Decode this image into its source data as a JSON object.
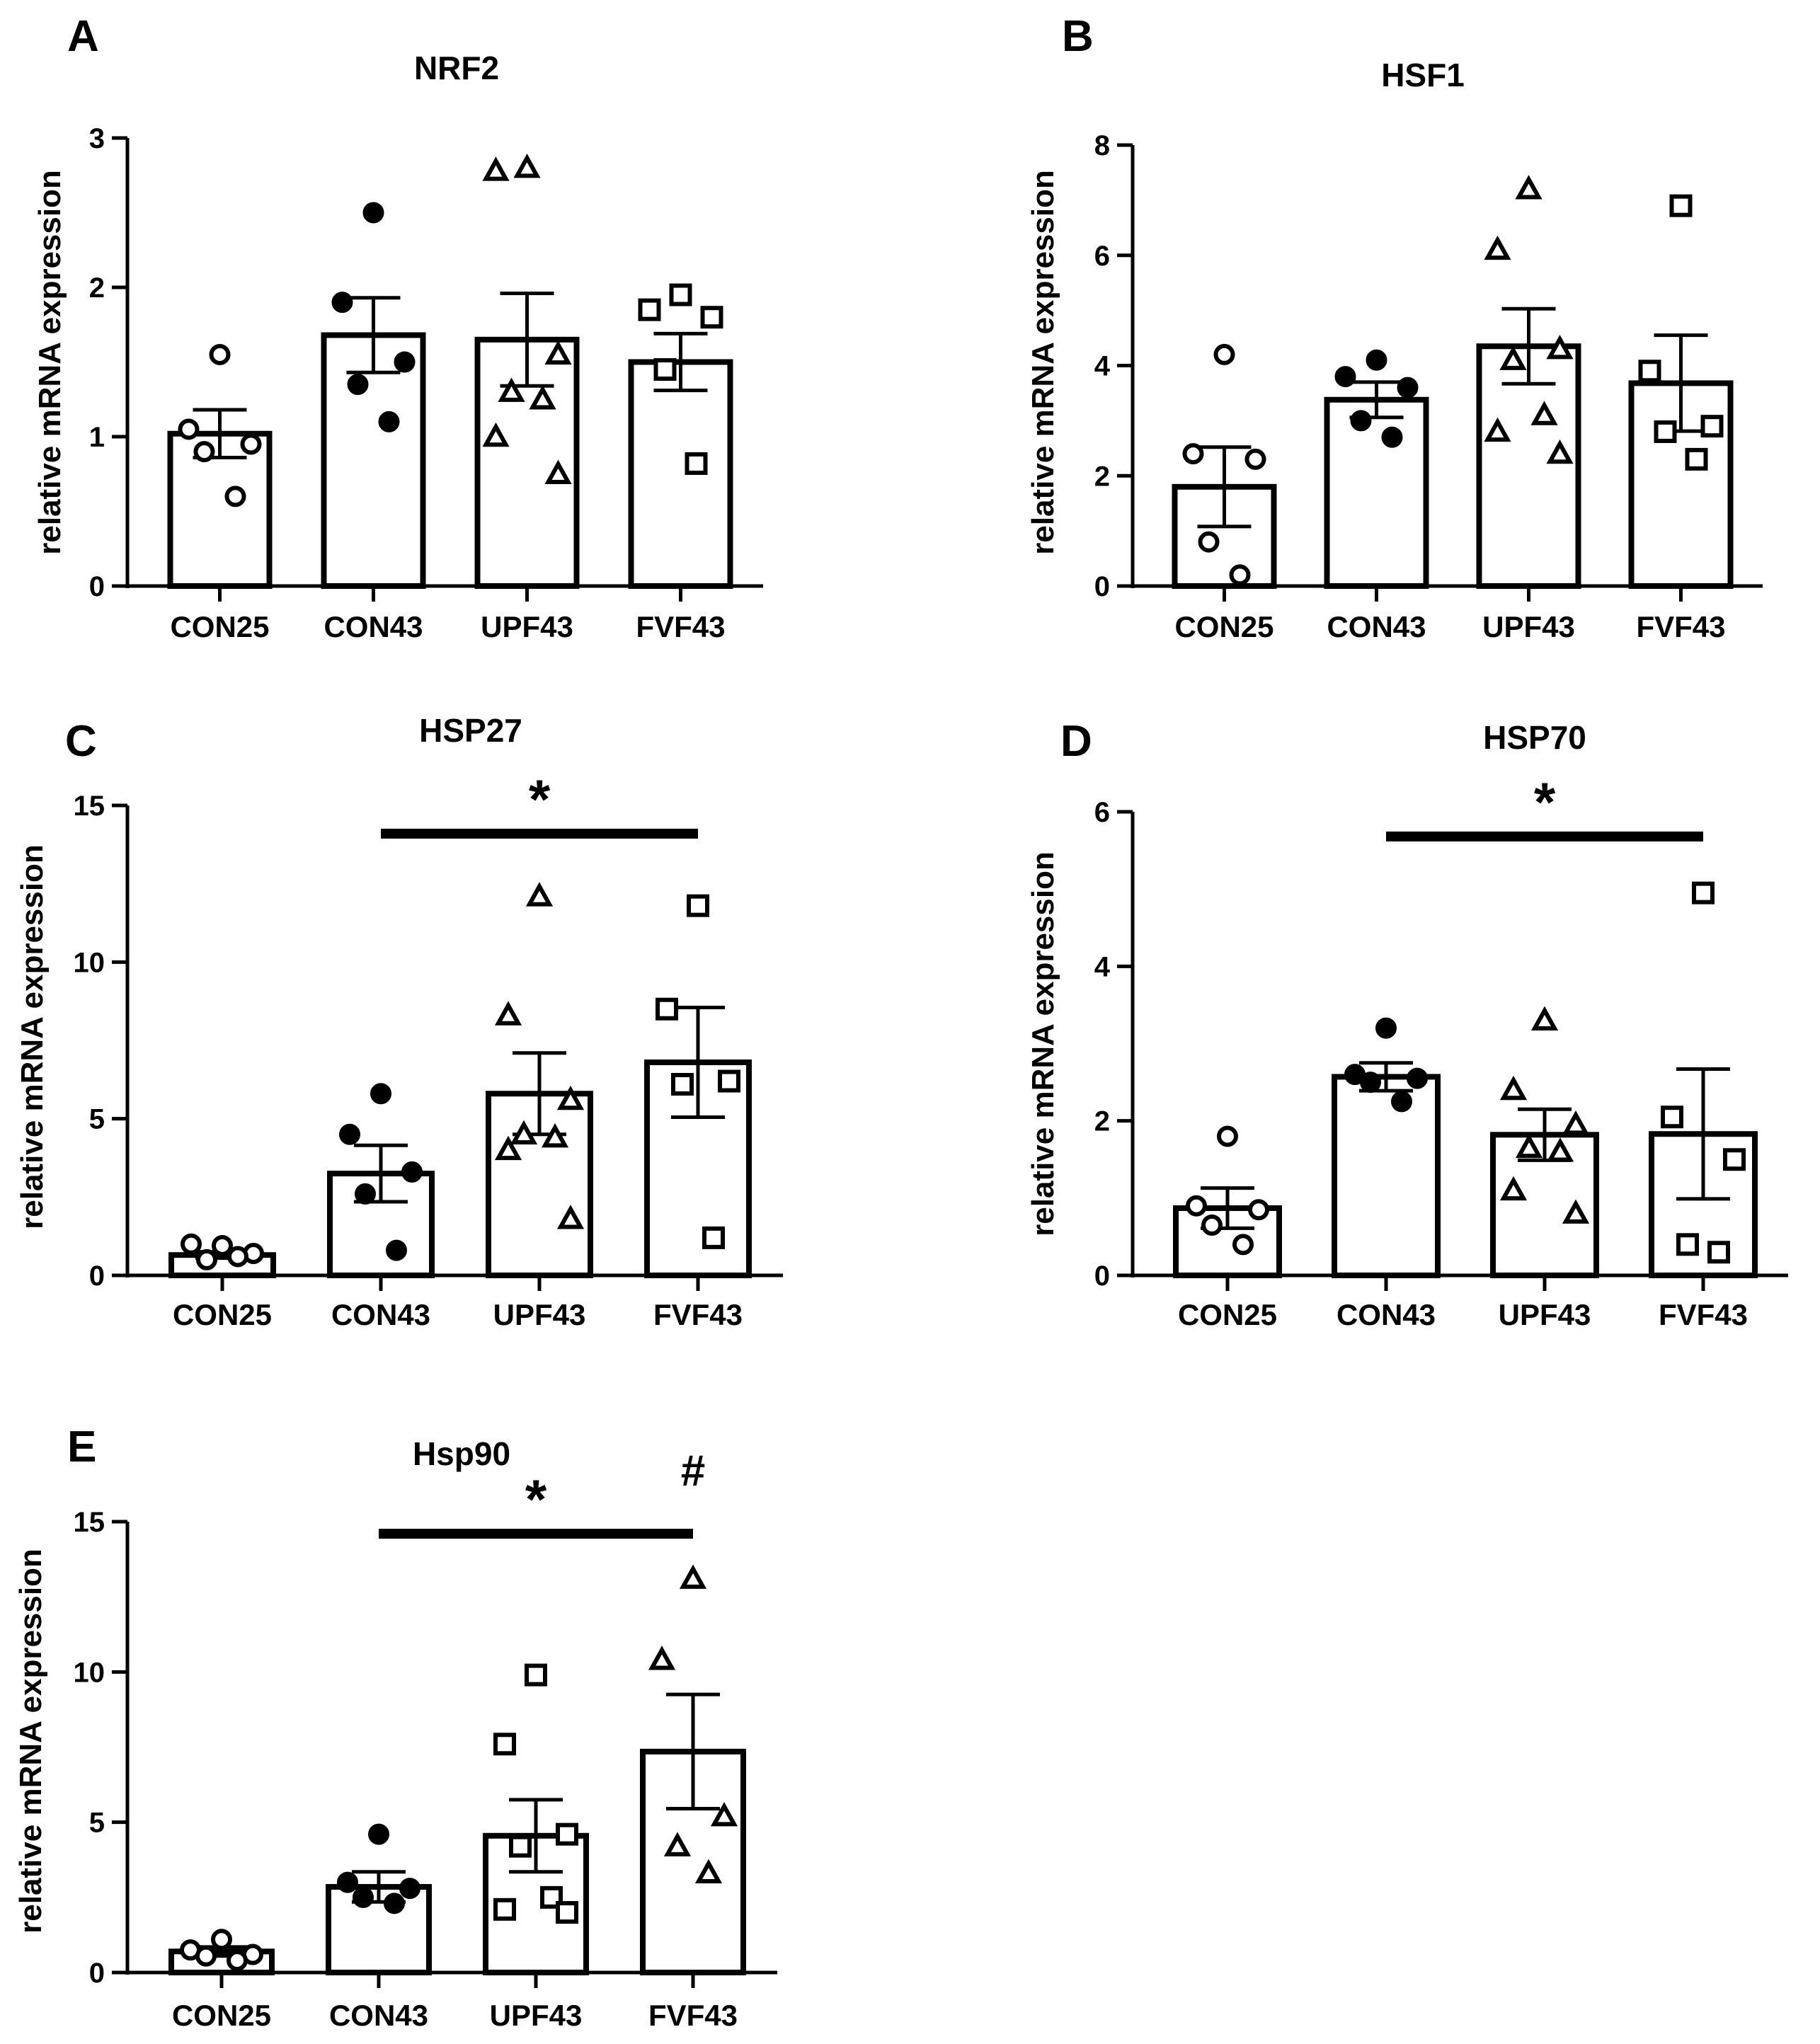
{
  "figure": {
    "colors": {
      "ink": "#000000",
      "bar_fill": "#ffffff"
    },
    "ylabel": "relative mRNA expression"
  },
  "chart_data": [
    {
      "panel": "A",
      "title": "NRF2",
      "type": "bar",
      "ylabel": "relative mRNA expression",
      "ylim": [
        0,
        3
      ],
      "yticks": [
        0,
        1,
        2,
        3
      ],
      "categories": [
        "CON25",
        "CON43",
        "UPF43",
        "FVF43"
      ],
      "markers": [
        "circle-open",
        "circle-filled",
        "triangle-open",
        "square-open"
      ],
      "means": [
        1.02,
        1.68,
        1.65,
        1.5
      ],
      "sem": [
        0.16,
        0.25,
        0.31,
        0.19
      ],
      "points": [
        [
          1.55,
          1.05,
          0.95,
          0.9,
          0.6
        ],
        [
          2.5,
          1.9,
          1.5,
          1.35,
          1.1
        ],
        [
          2.8,
          2.78,
          1.55,
          1.3,
          1.25,
          1.0,
          0.75
        ],
        [
          1.95,
          1.85,
          1.8,
          1.45,
          0.82
        ]
      ],
      "annotations": []
    },
    {
      "panel": "B",
      "title": "HSF1",
      "type": "bar",
      "ylabel": "relative mRNA expression",
      "ylim": [
        0,
        8
      ],
      "yticks": [
        0,
        2,
        4,
        6,
        8
      ],
      "categories": [
        "CON25",
        "CON43",
        "UPF43",
        "FVF43"
      ],
      "markers": [
        "circle-open",
        "circle-filled",
        "triangle-open",
        "square-open"
      ],
      "means": [
        1.8,
        3.38,
        4.35,
        3.68
      ],
      "sem": [
        0.72,
        0.32,
        0.68,
        0.87
      ],
      "points": [
        [
          4.2,
          2.4,
          2.3,
          0.8,
          0.2
        ],
        [
          4.1,
          3.8,
          3.6,
          3.0,
          2.7
        ],
        [
          7.2,
          6.1,
          4.3,
          4.1,
          3.1,
          2.8,
          2.4
        ],
        [
          6.9,
          3.9,
          2.9,
          2.8,
          2.3
        ]
      ],
      "annotations": []
    },
    {
      "panel": "C",
      "title": "HSP27",
      "type": "bar",
      "ylabel": "relative mRNA expression",
      "ylim": [
        0,
        15
      ],
      "yticks": [
        0,
        5,
        10,
        15
      ],
      "categories": [
        "CON25",
        "CON43",
        "UPF43",
        "FVF43"
      ],
      "markers": [
        "circle-open",
        "circle-filled",
        "triangle-open",
        "square-open"
      ],
      "means": [
        0.65,
        3.25,
        5.8,
        6.8
      ],
      "sem": [
        0.1,
        0.9,
        1.3,
        1.75
      ],
      "points": [
        [
          0.95,
          1.0,
          0.7,
          0.5,
          0.6
        ],
        [
          5.8,
          4.5,
          3.3,
          2.6,
          0.8
        ],
        [
          12.1,
          8.3,
          5.6,
          4.5,
          4.4,
          4.0,
          1.8
        ],
        [
          11.8,
          8.5,
          6.2,
          6.1,
          1.2
        ]
      ],
      "annotations": [
        {
          "text": "*",
          "from_category": 1,
          "to_category": 3,
          "y": 14.1
        }
      ]
    },
    {
      "panel": "D",
      "title": "HSP70",
      "type": "bar",
      "ylabel": "relative mRNA expression",
      "ylim": [
        0,
        6
      ],
      "yticks": [
        0,
        2,
        4,
        6
      ],
      "categories": [
        "CON25",
        "CON43",
        "UPF43",
        "FVF43"
      ],
      "markers": [
        "circle-open",
        "circle-filled",
        "triangle-open",
        "square-open"
      ],
      "means": [
        0.87,
        2.57,
        1.82,
        1.83
      ],
      "sem": [
        0.26,
        0.18,
        0.33,
        0.84
      ],
      "points": [
        [
          1.8,
          0.9,
          0.85,
          0.65,
          0.4
        ],
        [
          3.2,
          2.6,
          2.55,
          2.5,
          2.25
        ],
        [
          3.3,
          2.4,
          1.95,
          1.65,
          1.6,
          1.1,
          0.8
        ],
        [
          4.95,
          2.05,
          1.5,
          0.4,
          0.3
        ]
      ],
      "annotations": [
        {
          "text": "*",
          "from_category": 1,
          "to_category": 3,
          "y": 5.68
        }
      ]
    },
    {
      "panel": "E",
      "title": "Hsp90",
      "type": "bar",
      "ylabel": "relative mRNA expression",
      "ylim": [
        0,
        15
      ],
      "yticks": [
        0,
        5,
        10,
        15
      ],
      "categories": [
        "CON25",
        "CON43",
        "UPF43",
        "FVF43"
      ],
      "markers": [
        "circle-open",
        "circle-filled",
        "square-open",
        "triangle-open"
      ],
      "means": [
        0.7,
        2.85,
        4.55,
        7.35
      ],
      "sem": [
        0.15,
        0.5,
        1.2,
        1.9
      ],
      "points": [
        [
          1.1,
          0.75,
          0.6,
          0.55,
          0.4
        ],
        [
          4.6,
          3.0,
          2.8,
          2.5,
          2.3
        ],
        [
          9.9,
          7.6,
          4.6,
          4.2,
          2.5,
          2.1,
          2.0
        ],
        [
          13.1,
          10.4,
          5.2,
          4.2,
          3.3
        ]
      ],
      "annotations": [
        {
          "text": "*",
          "from_category": 1,
          "to_category": 3,
          "y": 14.6
        },
        {
          "text": "#",
          "category": 3,
          "y": 16.2
        }
      ]
    }
  ]
}
